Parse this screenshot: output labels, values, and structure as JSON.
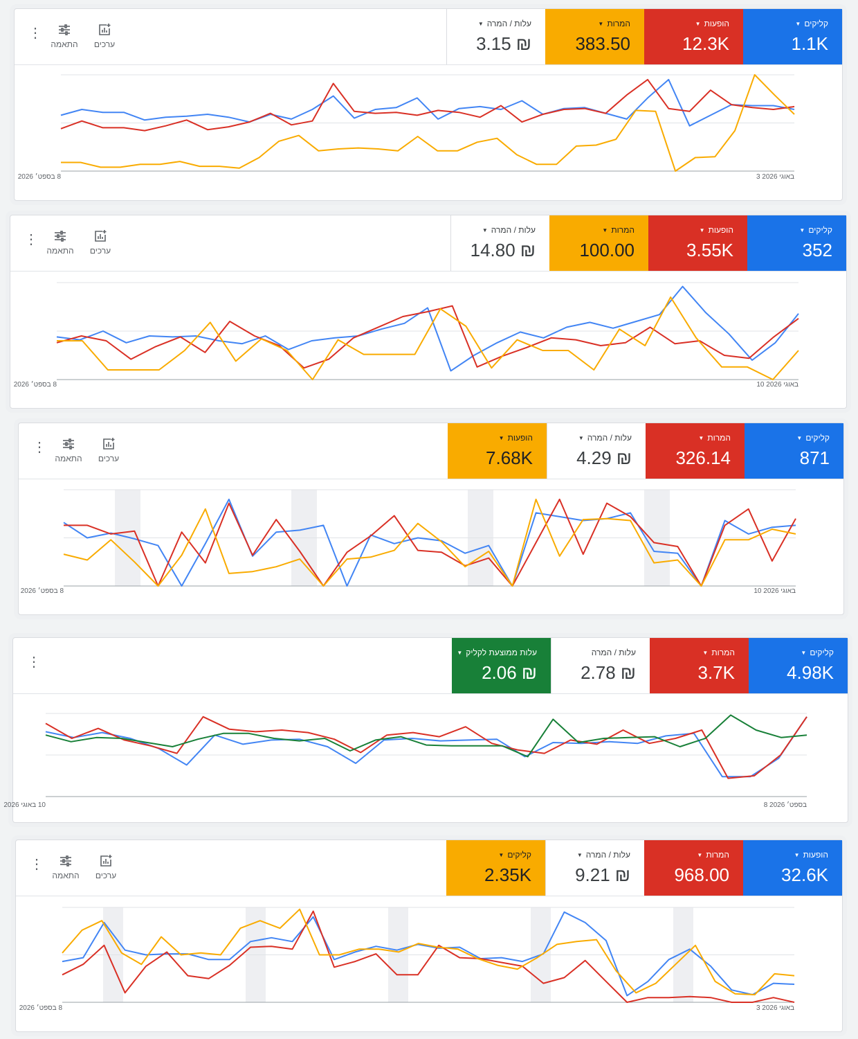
{
  "panels": [
    {
      "cards": [
        {
          "label": "קליקים",
          "value": "1.1K",
          "color": "#1a73e8",
          "dropdown": true
        },
        {
          "label": "הופעות",
          "value": "12.3K",
          "color": "#d93025",
          "dropdown": true
        },
        {
          "label": "המרות",
          "value": "383.50",
          "color": "#f9ab00",
          "dropdown": true,
          "dark_text": true
        },
        {
          "label": "עלות / המרה",
          "value": "₪ 3.15",
          "color": "#ffffff",
          "dropdown": true
        }
      ],
      "tools": {
        "kebab": "⋮",
        "adjust_label": "התאמה",
        "values_label": "ערכים"
      },
      "date_start": "8 בספט׳ 2026",
      "date_end": "3 באוגי 2026",
      "series": [
        {
          "color": "#4285f4",
          "y": [
            58,
            64,
            61,
            61,
            53,
            56,
            57,
            59,
            56,
            51,
            59,
            54,
            64,
            78,
            55,
            64,
            66,
            76,
            54,
            65,
            67,
            64,
            73,
            59,
            65,
            66,
            60,
            54,
            76,
            95,
            47,
            58,
            69,
            68,
            68,
            64
          ]
        },
        {
          "color": "#d93025",
          "y": [
            44,
            52,
            45,
            45,
            42,
            47,
            53,
            43,
            46,
            51,
            60,
            48,
            52,
            91,
            62,
            60,
            61,
            58,
            63,
            61,
            56,
            68,
            51,
            59,
            64,
            65,
            60,
            79,
            95,
            65,
            62,
            84,
            69,
            66,
            64,
            67
          ]
        },
        {
          "color": "#f9ab00",
          "y": [
            9,
            9,
            4,
            4,
            7,
            7,
            10,
            5,
            5,
            3,
            14,
            31,
            37,
            21,
            23,
            24,
            23,
            21,
            36,
            21,
            21,
            30,
            34,
            17,
            7,
            7,
            26,
            27,
            33,
            63,
            62,
            0,
            14,
            15,
            42,
            100,
            79,
            59
          ]
        }
      ]
    },
    {
      "cards": [
        {
          "label": "קליקים",
          "value": "352",
          "color": "#1a73e8",
          "dropdown": true
        },
        {
          "label": "הופעות",
          "value": "3.55K",
          "color": "#d93025",
          "dropdown": true
        },
        {
          "label": "המרות",
          "value": "100.00",
          "color": "#f9ab00",
          "dropdown": true,
          "dark_text": true
        },
        {
          "label": "עלות / המרה",
          "value": "₪ 14.80",
          "color": "#ffffff",
          "dropdown": true
        }
      ],
      "tools": {
        "kebab": "⋮",
        "adjust_label": "התאמה",
        "values_label": "ערכים"
      },
      "date_start": "8 בספט׳ 2026",
      "date_end": "10 באוגי 2026",
      "series": [
        {
          "color": "#4285f4",
          "y": [
            44,
            41,
            50,
            38,
            45,
            44,
            45,
            40,
            37,
            45,
            31,
            40,
            43,
            45,
            52,
            58,
            74,
            9,
            25,
            38,
            49,
            43,
            54,
            59,
            53,
            60,
            67,
            96,
            69,
            47,
            20,
            38,
            68
          ]
        },
        {
          "color": "#d93025",
          "y": [
            38,
            45,
            40,
            21,
            34,
            44,
            28,
            60,
            45,
            35,
            12,
            21,
            43,
            54,
            65,
            70,
            76,
            13,
            24,
            33,
            43,
            41,
            35,
            38,
            54,
            37,
            40,
            25,
            22,
            44,
            63
          ]
        },
        {
          "color": "#f9ab00",
          "y": [
            40,
            40,
            10,
            10,
            10,
            30,
            59,
            19,
            42,
            30,
            0,
            41,
            26,
            26,
            26,
            73,
            55,
            12,
            41,
            30,
            30,
            10,
            52,
            35,
            85,
            43,
            13,
            13,
            0,
            30
          ]
        }
      ]
    },
    {
      "cards": [
        {
          "label": "קליקים",
          "value": "871",
          "color": "#1a73e8",
          "dropdown": true
        },
        {
          "label": "המרות",
          "value": "326.14",
          "color": "#d93025",
          "dropdown": true
        },
        {
          "label": "עלות / המרה",
          "value": "₪ 4.29",
          "color": "#ffffff",
          "dropdown": true
        },
        {
          "label": "הופעות",
          "value": "7.68K",
          "color": "#f9ab00",
          "dropdown": true,
          "dark_text": true
        }
      ],
      "tools": {
        "kebab": "⋮",
        "adjust_label": "התאמה",
        "values_label": "ערכים"
      },
      "date_start": "8 בספט׳ 2026",
      "date_end": "10 באוגי 2026",
      "series": [
        {
          "color": "#4285f4",
          "y": [
            66,
            50,
            55,
            49,
            42,
            0,
            44,
            90,
            31,
            56,
            58,
            63,
            0,
            53,
            44,
            50,
            47,
            34,
            42,
            0,
            76,
            72,
            68,
            70,
            76,
            36,
            34,
            0,
            68,
            54,
            61,
            63
          ]
        },
        {
          "color": "#d93025",
          "y": [
            63,
            63,
            54,
            57,
            0,
            56,
            24,
            86,
            32,
            69,
            36,
            0,
            35,
            52,
            73,
            37,
            35,
            21,
            29,
            0,
            45,
            90,
            33,
            86,
            72,
            45,
            41,
            0,
            63,
            80,
            26,
            70
          ]
        },
        {
          "color": "#f9ab00",
          "y": [
            33,
            27,
            48,
            25,
            0,
            32,
            80,
            13,
            15,
            20,
            28,
            0,
            28,
            30,
            37,
            65,
            46,
            20,
            36,
            0,
            90,
            31,
            69,
            70,
            68,
            24,
            27,
            0,
            48,
            48,
            59,
            54
          ]
        }
      ]
    },
    {
      "cards": [
        {
          "label": "קליקים",
          "value": "4.98K",
          "color": "#1a73e8",
          "dropdown": true
        },
        {
          "label": "המרות",
          "value": "3.7K",
          "color": "#d93025",
          "dropdown": true
        },
        {
          "label": "עלות / המרה",
          "value": "₪ 2.78",
          "color": "#ffffff",
          "dropdown": false
        },
        {
          "label": "עלות ממוצעת לקליק",
          "value": "₪ 2.06",
          "color": "#188038",
          "dropdown": true
        }
      ],
      "tools": {
        "kebab": "⋮",
        "adjust_label": "",
        "values_label": ""
      },
      "date_start": "10 באוגי 2026",
      "date_end": "8 בספט׳ 2026",
      "series": [
        {
          "color": "#4285f4",
          "y": [
            78,
            71,
            77,
            70,
            58,
            38,
            74,
            63,
            68,
            69,
            60,
            40,
            68,
            70,
            67,
            68,
            69,
            48,
            65,
            64,
            66,
            64,
            73,
            76,
            24,
            24,
            46,
            96
          ]
        },
        {
          "color": "#d93025",
          "y": [
            88,
            70,
            82,
            68,
            61,
            52,
            96,
            81,
            78,
            80,
            77,
            69,
            53,
            74,
            77,
            72,
            84,
            64,
            56,
            52,
            68,
            63,
            80,
            64,
            70,
            80,
            22,
            25,
            50,
            96
          ]
        },
        {
          "color": "#188038",
          "y": [
            74,
            66,
            71,
            70,
            65,
            60,
            69,
            76,
            76,
            70,
            67,
            70,
            55,
            68,
            72,
            62,
            61,
            61,
            61,
            48,
            93,
            65,
            70,
            71,
            72,
            60,
            70,
            98,
            80,
            71,
            74
          ]
        }
      ]
    },
    {
      "cards": [
        {
          "label": "הופעות",
          "value": "32.6K",
          "color": "#1a73e8",
          "dropdown": true
        },
        {
          "label": "המרות",
          "value": "968.00",
          "color": "#d93025",
          "dropdown": true
        },
        {
          "label": "עלות / המרה",
          "value": "₪ 9.21",
          "color": "#ffffff",
          "dropdown": true
        },
        {
          "label": "קליקים",
          "value": "2.35K",
          "color": "#f9ab00",
          "dropdown": true,
          "dark_text": true
        }
      ],
      "tools": {
        "kebab": "⋮",
        "adjust_label": "התאמה",
        "values_label": "ערכים"
      },
      "date_start": "8 בספט׳ 2026",
      "date_end": "3 באוגי 2026",
      "series": [
        {
          "color": "#4285f4",
          "y": [
            43,
            47,
            84,
            55,
            50,
            51,
            51,
            45,
            45,
            64,
            68,
            64,
            90,
            45,
            53,
            59,
            55,
            61,
            57,
            58,
            46,
            47,
            43,
            51,
            95,
            84,
            65,
            7,
            22,
            45,
            56,
            38,
            13,
            8,
            20,
            19
          ]
        },
        {
          "color": "#d93025",
          "y": [
            29,
            40,
            60,
            10,
            38,
            53,
            28,
            25,
            39,
            58,
            59,
            56,
            96,
            37,
            43,
            51,
            29,
            29,
            60,
            47,
            46,
            42,
            38,
            20,
            26,
            44,
            22,
            0,
            5,
            5,
            6,
            5,
            0,
            0,
            5,
            0
          ]
        },
        {
          "color": "#f9ab00",
          "y": [
            52,
            76,
            86,
            52,
            40,
            69,
            50,
            52,
            50,
            78,
            86,
            78,
            98,
            50,
            50,
            56,
            56,
            53,
            62,
            58,
            56,
            46,
            39,
            35,
            47,
            61,
            64,
            66,
            33,
            10,
            20,
            40,
            60,
            22,
            9,
            8,
            30,
            28
          ]
        }
      ]
    }
  ]
}
